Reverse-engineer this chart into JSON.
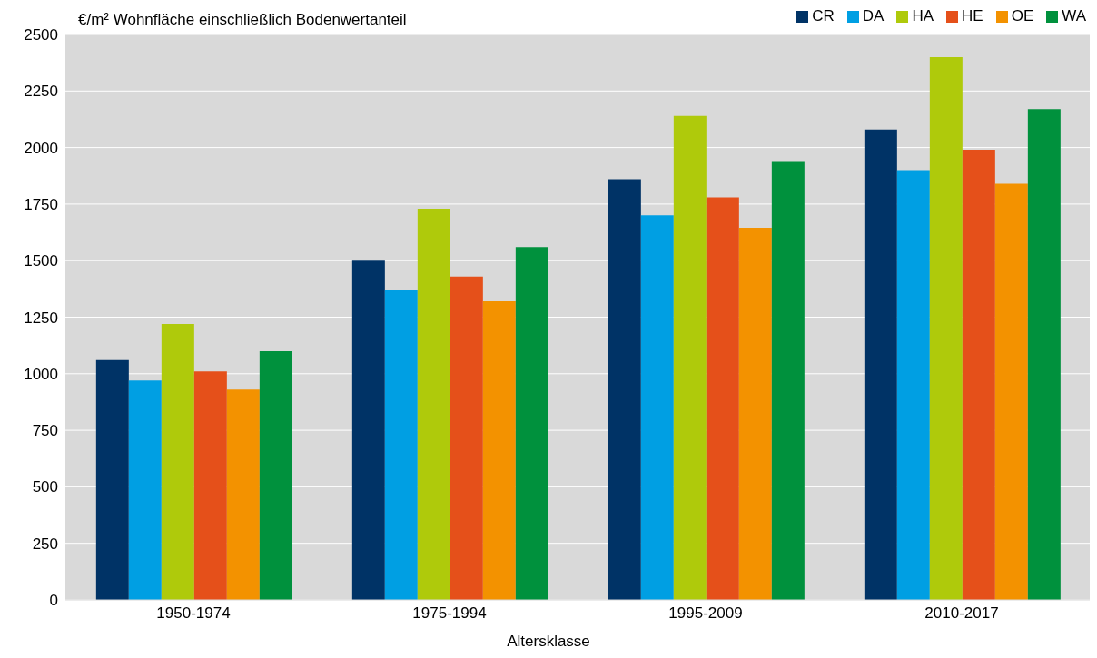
{
  "chart_data": {
    "type": "bar",
    "ylabel": "€/m² Wohnfläche einschließlich Bodenwertanteil",
    "xlabel": "Altersklasse",
    "categories": [
      "1950-1974",
      "1975-1994",
      "1995-2009",
      "2010-2017"
    ],
    "series": [
      {
        "name": "CR",
        "color": "#003366",
        "values": [
          1060,
          1500,
          1860,
          2080
        ]
      },
      {
        "name": "DA",
        "color": "#009fe3",
        "values": [
          970,
          1370,
          1700,
          1900
        ]
      },
      {
        "name": "HA",
        "color": "#afca0b",
        "values": [
          1220,
          1730,
          2140,
          2400
        ]
      },
      {
        "name": "HE",
        "color": "#e5501a",
        "values": [
          1010,
          1430,
          1780,
          1990
        ]
      },
      {
        "name": "OE",
        "color": "#f39200",
        "values": [
          930,
          1320,
          1645,
          1840
        ]
      },
      {
        "name": "WA",
        "color": "#00913d",
        "values": [
          1100,
          1560,
          1940,
          2170
        ]
      }
    ],
    "ylim": [
      0,
      2500
    ],
    "yticks": [
      0,
      250,
      500,
      750,
      1000,
      1250,
      1500,
      1750,
      2000,
      2250,
      2500
    ],
    "grid": "y",
    "legend": "top right"
  }
}
